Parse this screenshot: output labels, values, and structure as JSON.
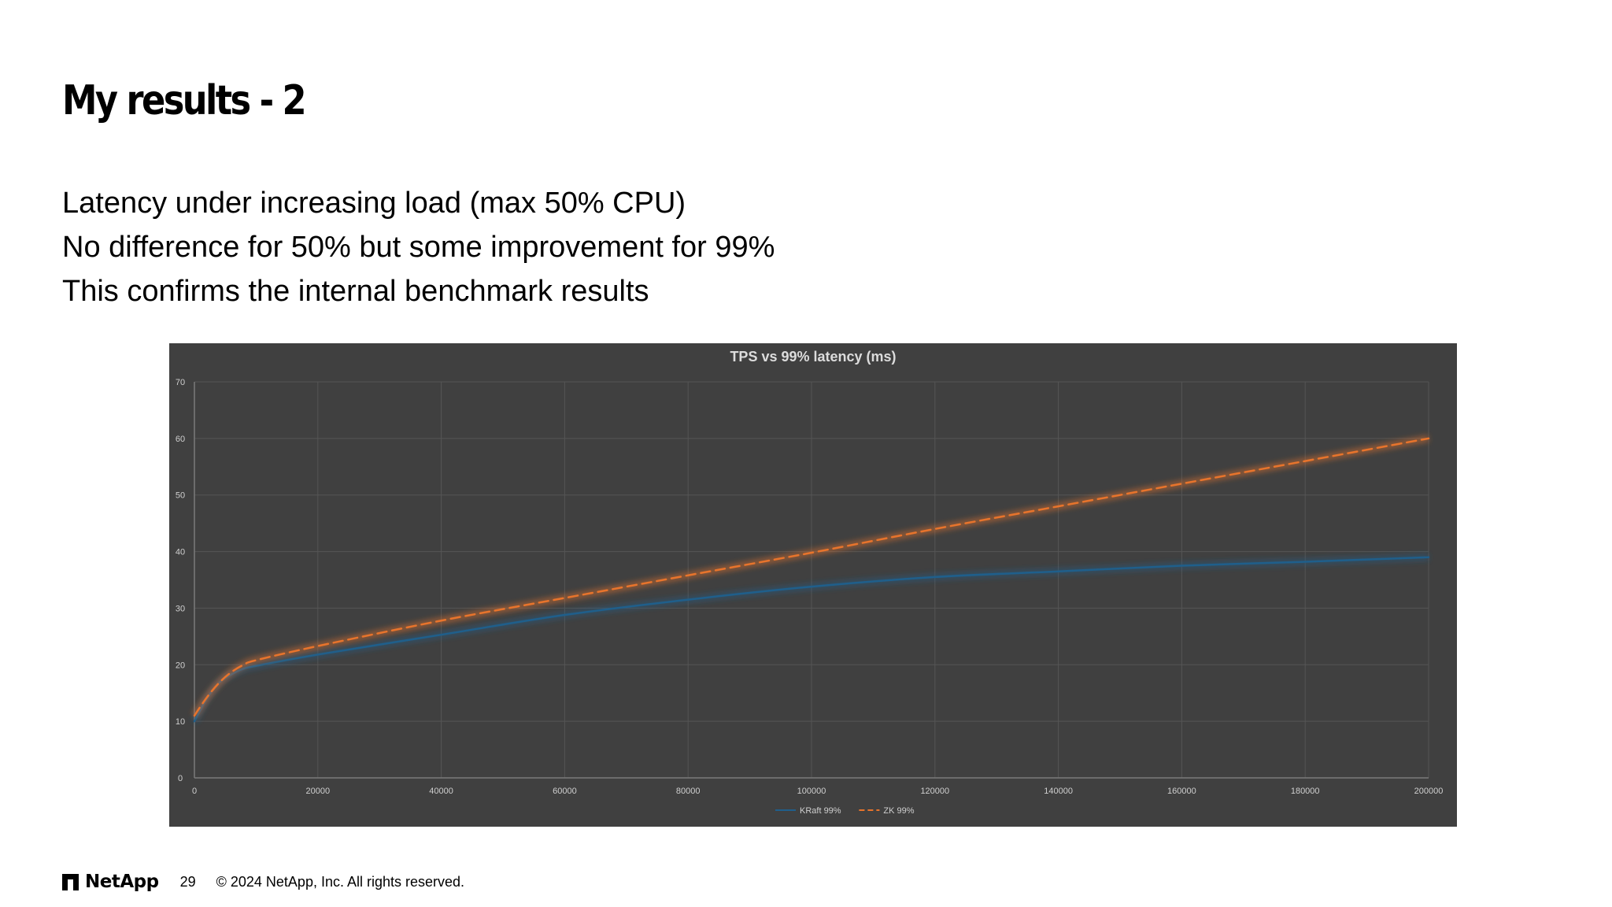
{
  "slide": {
    "title": "My results - 2",
    "bullets": [
      "Latency under increasing load (max 50% CPU)",
      "No difference for 50% but some improvement for 99%",
      "This confirms the internal benchmark results"
    ]
  },
  "footer": {
    "brand": "NetApp",
    "page_number": "29",
    "copyright": "© 2024 NetApp, Inc. All rights reserved."
  },
  "colors": {
    "panel_background": "#404040",
    "kraft": "#1f5f8b",
    "zk": "#e8742c"
  },
  "chart_data": {
    "type": "line",
    "title": "TPS vs 99% latency (ms)",
    "xlabel": "",
    "ylabel": "",
    "xlim": [
      0,
      200000
    ],
    "ylim": [
      0,
      70
    ],
    "xticks": [
      0,
      20000,
      40000,
      60000,
      80000,
      100000,
      120000,
      140000,
      160000,
      180000,
      200000
    ],
    "yticks": [
      0,
      10,
      20,
      30,
      40,
      50,
      60,
      70
    ],
    "grid": true,
    "legend": "bottom",
    "series": [
      {
        "name": "KRaft 99%",
        "style": "solid",
        "color": "#1f5f8b",
        "points": [
          [
            0,
            10
          ],
          [
            2000,
            14
          ],
          [
            4000,
            16.8
          ],
          [
            6000,
            18.3
          ],
          [
            8000,
            19.3
          ],
          [
            10000,
            19.8
          ],
          [
            20000,
            21.8
          ],
          [
            40000,
            25.3
          ],
          [
            60000,
            28.8
          ],
          [
            80000,
            31.5
          ],
          [
            100000,
            33.8
          ],
          [
            120000,
            35.5
          ],
          [
            140000,
            36.5
          ],
          [
            160000,
            37.5
          ],
          [
            180000,
            38.2
          ],
          [
            200000,
            39
          ]
        ]
      },
      {
        "name": "ZK 99%",
        "style": "dashed",
        "color": "#e8742c",
        "points": [
          [
            0,
            11
          ],
          [
            2000,
            14.2
          ],
          [
            4000,
            16.8
          ],
          [
            6000,
            18.7
          ],
          [
            8000,
            20
          ],
          [
            10000,
            20.8
          ],
          [
            20000,
            23.3
          ],
          [
            40000,
            27.8
          ],
          [
            60000,
            31.8
          ],
          [
            80000,
            35.8
          ],
          [
            100000,
            39.8
          ],
          [
            120000,
            44
          ],
          [
            140000,
            48
          ],
          [
            160000,
            52
          ],
          [
            180000,
            56
          ],
          [
            200000,
            60
          ]
        ]
      }
    ]
  }
}
